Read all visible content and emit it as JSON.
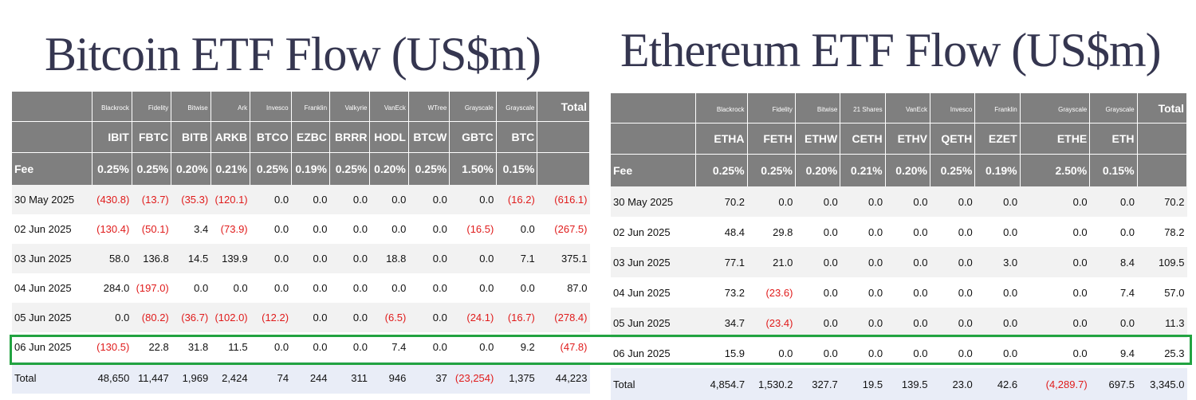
{
  "btc": {
    "title": "Bitcoin ETF Flow (US$m)",
    "issuers": [
      "Blackrock",
      "Fidelity",
      "Bitwise",
      "Ark",
      "Invesco",
      "Franklin",
      "Valkyrie",
      "VanEck",
      "WTree",
      "Grayscale",
      "Grayscale"
    ],
    "total_header": "Total",
    "tickers": [
      "IBIT",
      "FBTC",
      "BITB",
      "ARKB",
      "BTCO",
      "EZBC",
      "BRRR",
      "HODL",
      "BTCW",
      "GBTC",
      "BTC"
    ],
    "fee_label": "Fee",
    "fees": [
      "0.25%",
      "0.25%",
      "0.20%",
      "0.21%",
      "0.25%",
      "0.19%",
      "0.25%",
      "0.20%",
      "0.25%",
      "1.50%",
      "0.15%"
    ],
    "rows": [
      {
        "date": "30 May 2025",
        "values": [
          "(430.8)",
          "(13.7)",
          "(35.3)",
          "(120.1)",
          "0.0",
          "0.0",
          "0.0",
          "0.0",
          "0.0",
          "0.0",
          "(16.2)"
        ],
        "total": "(616.1)"
      },
      {
        "date": "02 Jun 2025",
        "values": [
          "(130.4)",
          "(50.1)",
          "3.4",
          "(73.9)",
          "0.0",
          "0.0",
          "0.0",
          "0.0",
          "0.0",
          "(16.5)",
          "0.0"
        ],
        "total": "(267.5)"
      },
      {
        "date": "03 Jun 2025",
        "values": [
          "58.0",
          "136.8",
          "14.5",
          "139.9",
          "0.0",
          "0.0",
          "0.0",
          "18.8",
          "0.0",
          "0.0",
          "7.1"
        ],
        "total": "375.1"
      },
      {
        "date": "04 Jun 2025",
        "values": [
          "284.0",
          "(197.0)",
          "0.0",
          "0.0",
          "0.0",
          "0.0",
          "0.0",
          "0.0",
          "0.0",
          "0.0",
          "0.0"
        ],
        "total": "87.0"
      },
      {
        "date": "05 Jun 2025",
        "values": [
          "0.0",
          "(80.2)",
          "(36.7)",
          "(102.0)",
          "(12.2)",
          "0.0",
          "0.0",
          "(6.5)",
          "0.0",
          "(24.1)",
          "(16.7)"
        ],
        "total": "(278.4)"
      },
      {
        "date": "06 Jun 2025",
        "values": [
          "(130.5)",
          "22.8",
          "31.8",
          "11.5",
          "0.0",
          "0.0",
          "0.0",
          "7.4",
          "0.0",
          "0.0",
          "9.2"
        ],
        "total": "(47.8)"
      }
    ],
    "total_row": {
      "label": "Total",
      "values": [
        "48,650",
        "11,447",
        "1,969",
        "2,424",
        "74",
        "244",
        "311",
        "946",
        "37",
        "(23,254)",
        "1,375"
      ],
      "total": "44,223"
    }
  },
  "eth": {
    "title": "Ethereum ETF Flow (US$m)",
    "issuers": [
      "Blackrock",
      "Fidelity",
      "Bitwise",
      "21 Shares",
      "VanEck",
      "Invesco",
      "Franklin",
      "Grayscale",
      "Grayscale"
    ],
    "total_header": "Total",
    "tickers": [
      "ETHA",
      "FETH",
      "ETHW",
      "CETH",
      "ETHV",
      "QETH",
      "EZET",
      "ETHE",
      "ETH"
    ],
    "fee_label": "Fee",
    "fees": [
      "0.25%",
      "0.25%",
      "0.20%",
      "0.21%",
      "0.20%",
      "0.25%",
      "0.19%",
      "2.50%",
      "0.15%"
    ],
    "rows": [
      {
        "date": "30 May 2025",
        "values": [
          "70.2",
          "0.0",
          "0.0",
          "0.0",
          "0.0",
          "0.0",
          "0.0",
          "0.0",
          "0.0"
        ],
        "total": "70.2"
      },
      {
        "date": "02 Jun 2025",
        "values": [
          "48.4",
          "29.8",
          "0.0",
          "0.0",
          "0.0",
          "0.0",
          "0.0",
          "0.0",
          "0.0"
        ],
        "total": "78.2"
      },
      {
        "date": "03 Jun 2025",
        "values": [
          "77.1",
          "21.0",
          "0.0",
          "0.0",
          "0.0",
          "0.0",
          "3.0",
          "0.0",
          "8.4"
        ],
        "total": "109.5"
      },
      {
        "date": "04 Jun 2025",
        "values": [
          "73.2",
          "(23.6)",
          "0.0",
          "0.0",
          "0.0",
          "0.0",
          "0.0",
          "0.0",
          "7.4"
        ],
        "total": "57.0"
      },
      {
        "date": "05 Jun 2025",
        "values": [
          "34.7",
          "(23.4)",
          "0.0",
          "0.0",
          "0.0",
          "0.0",
          "0.0",
          "0.0",
          "0.0"
        ],
        "total": "11.3"
      },
      {
        "date": "06 Jun 2025",
        "values": [
          "15.9",
          "0.0",
          "0.0",
          "0.0",
          "0.0",
          "0.0",
          "0.0",
          "0.0",
          "9.4"
        ],
        "total": "25.3"
      }
    ],
    "total_row": {
      "label": "Total",
      "values": [
        "4,854.7",
        "1,530.2",
        "327.7",
        "19.5",
        "139.5",
        "23.0",
        "42.6",
        "(4,289.7)",
        "697.5"
      ],
      "total": "3,345.0"
    }
  },
  "colors": {
    "header_bg": "#7f7f7f",
    "negative": "#e01b1b",
    "highlight": "#22a341",
    "title": "#353650"
  }
}
